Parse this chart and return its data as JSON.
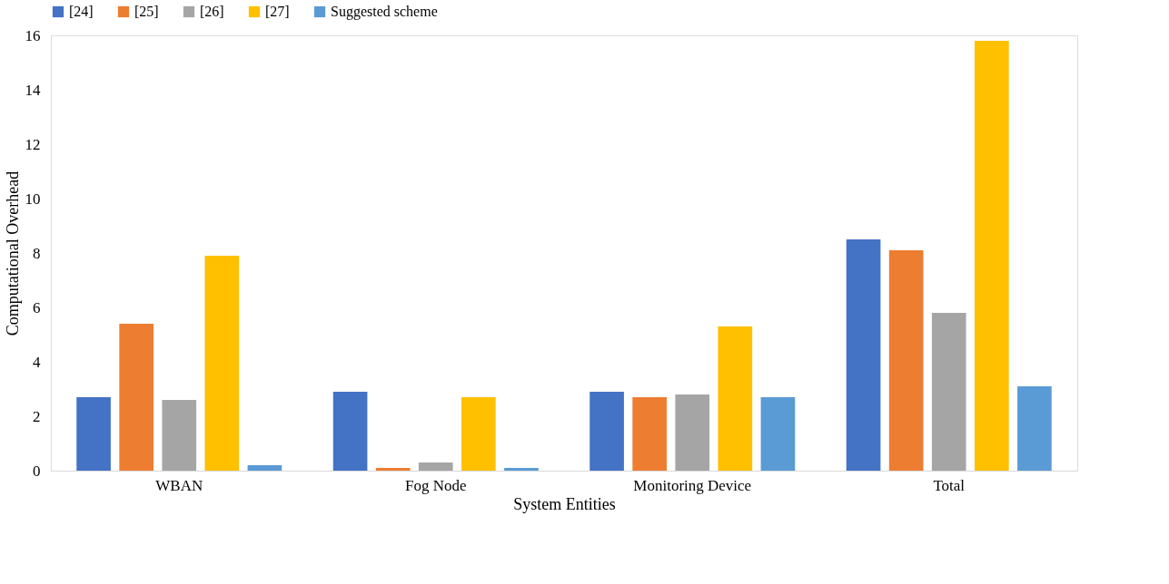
{
  "chart_data": {
    "type": "bar",
    "xlabel": "System Entities",
    "ylabel": "Computational Overhead",
    "categories": [
      "WBAN",
      "Fog Node",
      "Monitoring Device",
      "Total"
    ],
    "series": [
      {
        "name": "[24]",
        "color": "#4472c4",
        "values": [
          2.7,
          2.9,
          2.9,
          8.5
        ]
      },
      {
        "name": "[25]",
        "color": "#ed7d31",
        "values": [
          5.4,
          0.1,
          2.7,
          8.1
        ]
      },
      {
        "name": "[26]",
        "color": "#a5a5a5",
        "values": [
          2.6,
          0.3,
          2.8,
          5.8
        ]
      },
      {
        "name": "[27]",
        "color": "#ffc000",
        "values": [
          7.9,
          2.7,
          5.3,
          15.8
        ]
      },
      {
        "name": "Suggested scheme",
        "color": "#5b9bd5",
        "values": [
          0.2,
          0.1,
          2.7,
          3.1
        ]
      }
    ],
    "ylim": [
      0,
      16
    ],
    "yticks": [
      0,
      2,
      4,
      6,
      8,
      10,
      12,
      14,
      16
    ],
    "grid": false,
    "legend": "top"
  }
}
